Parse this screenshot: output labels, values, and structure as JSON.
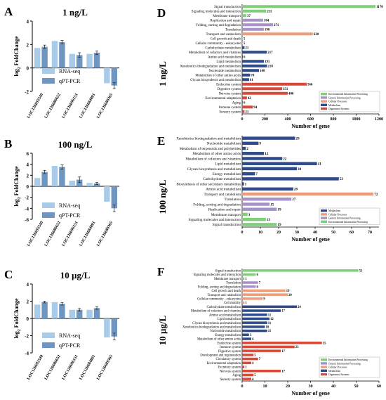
{
  "colors": {
    "rnaseq": "#a8cbe8",
    "qpcr": "#6e96c0",
    "err": "#333333",
    "cat_env": "#7ecf78",
    "cat_gip": "#a692c8",
    "cat_cp": "#ee9c7a",
    "cat_met": "#2f4b8a",
    "cat_org": "#d84a3a",
    "axis": "#000000"
  },
  "panel_letters": {
    "A": "A",
    "B": "B",
    "C": "C",
    "D": "D",
    "E": "E",
    "F": "F"
  },
  "chart_data": [
    {
      "id": "A",
      "type": "bar",
      "title": "1 ng/L",
      "ylabel": "log2 FoldChange",
      "ylabel_base": "log",
      "ylabel_sub": "2",
      "ylabel_rest": " FoldChange",
      "ylim": [
        -2,
        4
      ],
      "yticks": [
        "-2",
        "0",
        "2",
        "4"
      ],
      "categories": [
        "LOC126692540",
        "LOC126686652",
        "LOC126696151",
        "LOC126684891",
        "LOC126689365"
      ],
      "legend": [
        "RNA-seq",
        "qPT-PCR"
      ],
      "series": [
        {
          "name": "RNA-seq",
          "values": [
            1.7,
            2.3,
            1.2,
            1.2,
            -1.3
          ]
        },
        {
          "name": "qPT-PCR",
          "values": [
            1.8,
            2.2,
            1.1,
            1.3,
            -1.5
          ],
          "err": [
            0.15,
            0.15,
            0.2,
            0.15,
            0.25
          ]
        }
      ]
    },
    {
      "id": "B",
      "type": "bar",
      "title": "100 ng/L",
      "ylabel": "log2 FoldChange",
      "ylabel_base": "log",
      "ylabel_sub": "2",
      "ylabel_rest": " FoldChange",
      "ylim": [
        -6,
        6
      ],
      "yticks": [
        "-6",
        "-4",
        "-2",
        "0",
        "2",
        "4",
        "6"
      ],
      "categories": [
        "LOC126692540",
        "LOC126686652",
        "LOC126696151",
        "LOC126684891",
        "LOC126689365"
      ],
      "legend": [
        "RNA-seq",
        "qPT-PCR"
      ],
      "series": [
        {
          "name": "RNA-seq",
          "values": [
            1.5,
            3.7,
            1.0,
            0.6,
            -2.8
          ]
        },
        {
          "name": "qPT-PCR",
          "values": [
            2.6,
            3.5,
            1.2,
            0.5,
            -4.0
          ],
          "err": [
            0.3,
            0.4,
            0.5,
            0.2,
            0.6
          ]
        }
      ]
    },
    {
      "id": "C",
      "type": "bar",
      "title": "10 µg/L",
      "ylabel": "log2 FoldChange",
      "ylabel_base": "log",
      "ylabel_sub": "2",
      "ylabel_rest": " FoldChange",
      "ylim": [
        -4,
        4
      ],
      "yticks": [
        "-4",
        "-2",
        "0",
        "2",
        "4"
      ],
      "categories": [
        "LOC126692540",
        "LOC126686652",
        "LOC126696151",
        "LOC126684891",
        "LOC126689365"
      ],
      "legend": [
        "RNA-seq",
        "qPT-PCR"
      ],
      "series": [
        {
          "name": "RNA-seq",
          "values": [
            1.6,
            1.9,
            1.0,
            1.0,
            -2.2
          ]
        },
        {
          "name": "qPT-PCR",
          "values": [
            1.9,
            1.7,
            1.0,
            1.2,
            -2.1
          ],
          "err": [
            0.1,
            0.15,
            0.15,
            0.15,
            0.4
          ]
        }
      ]
    },
    {
      "id": "D",
      "type": "bar",
      "orientation": "horizontal",
      "side_label": "1 ng/L",
      "xlabel": "Number of gene",
      "xlim": [
        0,
        1200
      ],
      "xticks": [
        "0",
        "200",
        "400",
        "600",
        "800",
        "1000",
        "1200"
      ],
      "legend": [
        "Environmental Information Processing",
        "Genetic Information Processing",
        "Cellular Processes",
        "Metabolism",
        "Organismal Systems"
      ],
      "categories": [
        "Signal transduction",
        "Signaling molecules and interaction",
        "Membrane transport",
        "Replication and repair",
        "Folding, sorting and degradation",
        "Translation",
        "Transport and catabolism",
        "Cell growth and death",
        "Cellular community - eukaryotes",
        "Carbohydrate metabolism",
        "Metabolism of cofactors and vitamins",
        "Amino acid metabolism",
        "Lipid metabolism",
        "Xenobiotics biodegradation and metabolism",
        "Nucleotide metabolism",
        "Metabolism of other amino acids",
        "Glycan biosynthesis and metabolism",
        "Endocrine system",
        "Digestive system",
        "Nervous system",
        "Environmental adaptation",
        "Aging",
        "Immune system",
        "Sensory system"
      ],
      "values": [
        1170,
        211,
        37,
        184,
        271,
        190,
        620,
        5,
        5,
        21,
        217,
        6,
        191,
        218,
        148,
        70,
        61,
        566,
        351,
        400,
        42,
        6,
        94,
        21
      ],
      "classes": [
        "env",
        "env",
        "env",
        "gip",
        "gip",
        "gip",
        "cp",
        "cp",
        "cp",
        "met",
        "met",
        "met",
        "met",
        "met",
        "met",
        "met",
        "met",
        "org",
        "org",
        "org",
        "org",
        "org",
        "org",
        "org"
      ]
    },
    {
      "id": "E",
      "type": "bar",
      "orientation": "horizontal",
      "side_label": "100 ng/L",
      "xlabel": "Number of gene",
      "xlim": [
        0,
        75
      ],
      "xticks": [
        "0",
        "10",
        "20",
        "30",
        "40",
        "50",
        "60",
        "70"
      ],
      "legend": [
        "Metabolism",
        "Cellular Processes",
        "Genetic Information Processing",
        "Environmental Information Processing"
      ],
      "categories": [
        "Xenobiotics biodegradation and metabolism",
        "Nucleotide metabolism",
        "Metabolism of terpenoids and polyketides",
        "Metabolism of other amino acids",
        "Metabolism of cofactors and vitamins",
        "Lipid metabolism",
        "Glycan biosynthesis and metabolism",
        "Energy metabolism",
        "Carbohydrate metabolism",
        "Biosynthesis of other secondary metabolites",
        "Amino acid metabolism",
        "Transport and catabolism",
        "Translation",
        "Folding, sorting and degradation",
        "Replication and repair",
        "Membrane transport",
        "Signaling molecules and interaction",
        "Signal transduction"
      ],
      "values": [
        29,
        9,
        2,
        12,
        22,
        41,
        30,
        7,
        53,
        1,
        28,
        72,
        27,
        15,
        19,
        3,
        13,
        19
      ],
      "classes": [
        "met",
        "met",
        "met",
        "met",
        "met",
        "met",
        "met",
        "met",
        "met",
        "met",
        "met",
        "cp",
        "gip",
        "gip",
        "gip",
        "env",
        "env",
        "env"
      ]
    },
    {
      "id": "F",
      "type": "bar",
      "orientation": "horizontal",
      "side_label": "10 µg/L",
      "xlabel": "Number of gene",
      "xlim": [
        0,
        60
      ],
      "xticks": [
        "0",
        "10",
        "20",
        "30",
        "40",
        "50",
        "60"
      ],
      "legend": [
        "Environmental Information Processing",
        "Genetic Information Processing",
        "Cellular Processes",
        "Metabolism",
        "Organismal Systems"
      ],
      "categories": [
        "Signal transduction",
        "Signaling molecules and interaction",
        "Membrane transport",
        "Translation",
        "Folding, sorting and degradation",
        "Cell growth and death",
        "Transport and catabolism",
        "Cellular community - eukaryotes",
        "Cell motility",
        "Carbohydrate metabolism",
        "Metabolism of cofactors and vitamins",
        "Amino acid metabolism",
        "Lipid metabolism",
        "Glycan biosynthesis and metabolism",
        "Xenobiotics biodegradation and metabolism",
        "Nucleotide metabolism",
        "Energy metabolism",
        "Metabolism of other amino acids",
        "Endocrine system",
        "Immune system",
        "Digestive system",
        "Development and regeneration",
        "Circulatory system",
        "Environmental adaptation",
        "Excretory system",
        "Nervous system",
        "Aging",
        "Sensory system"
      ],
      "values": [
        51,
        6,
        1,
        7,
        6,
        19,
        20,
        9,
        1,
        24,
        17,
        11,
        12,
        11,
        10,
        11,
        3,
        4,
        35,
        23,
        17,
        5,
        7,
        4,
        1,
        17,
        5,
        4
      ],
      "classes": [
        "env",
        "env",
        "env",
        "gip",
        "gip",
        "cp",
        "cp",
        "cp",
        "cp",
        "met",
        "met",
        "met",
        "met",
        "met",
        "met",
        "met",
        "met",
        "met",
        "org",
        "org",
        "org",
        "org",
        "org",
        "org",
        "org",
        "org",
        "org",
        "org"
      ]
    }
  ]
}
